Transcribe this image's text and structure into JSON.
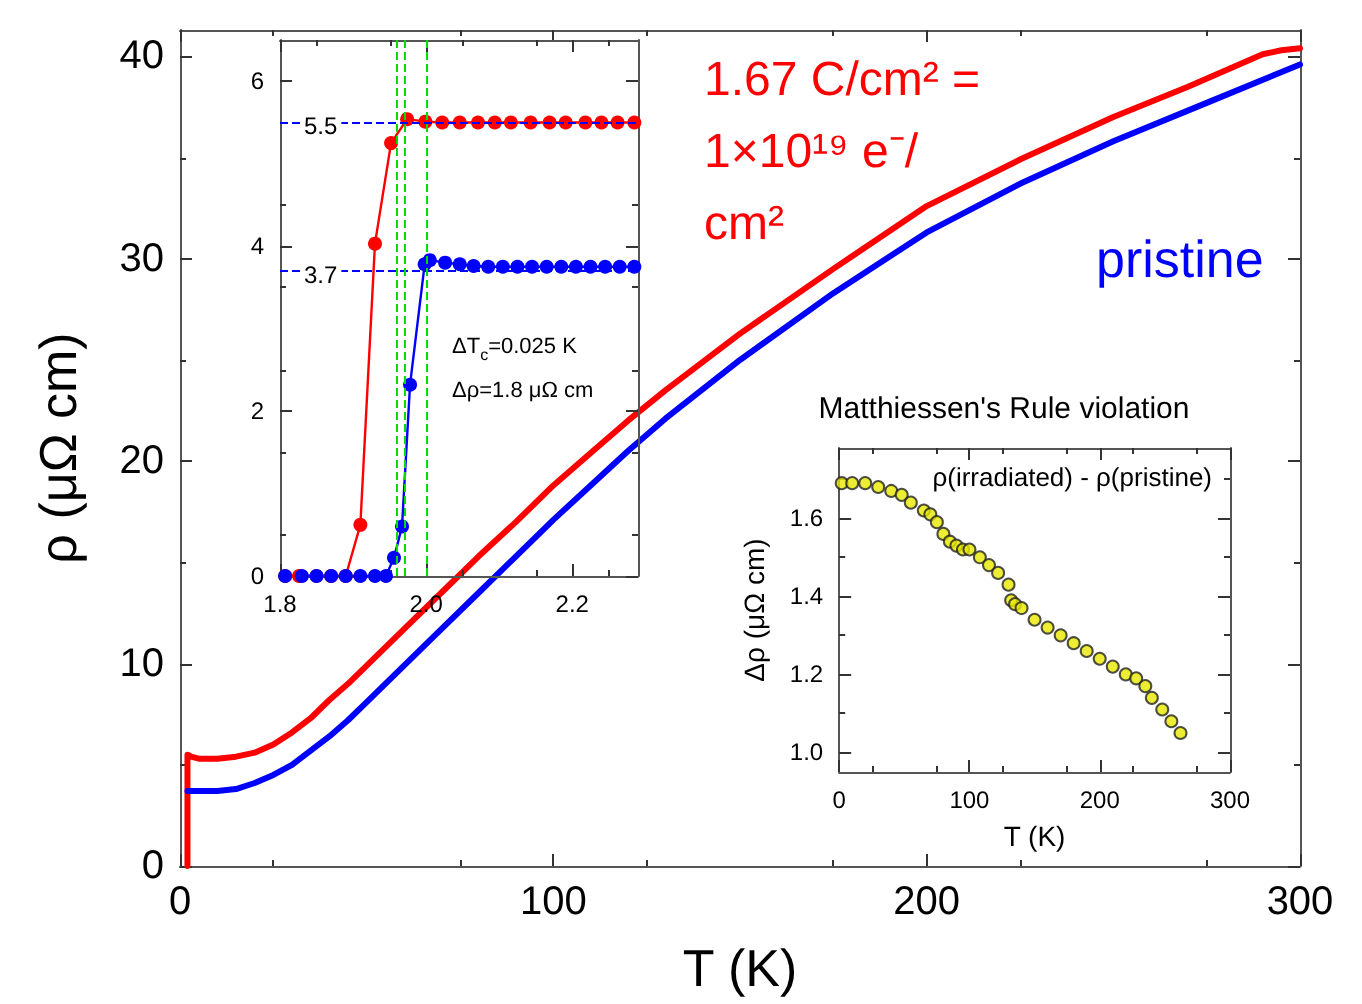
{
  "chart_data": [
    {
      "type": "line",
      "xlabel": "T (K)",
      "ylabel": "ρ (μΩ cm)",
      "xlim": [
        0,
        300
      ],
      "ylim": [
        0,
        41.3
      ],
      "xticks": [
        0,
        100,
        200,
        300
      ],
      "yticks": [
        0,
        10,
        20,
        30,
        40
      ],
      "grid": false,
      "legend": false,
      "marker": "none",
      "line_style": "solid",
      "series": [
        {
          "name": "1.67 C/cm² = 1×10¹⁹ e⁻/cm²",
          "color": "#ff0000",
          "x": [
            2,
            2,
            3,
            5,
            10,
            15,
            20,
            25,
            30,
            35,
            40,
            45,
            50,
            60,
            70,
            80,
            90,
            100,
            110,
            120,
            130,
            150,
            175,
            200,
            225,
            250,
            270,
            280,
            290,
            295,
            300
          ],
          "values": [
            0,
            5.5,
            5.4,
            5.3,
            5.3,
            5.4,
            5.6,
            6.0,
            6.6,
            7.3,
            8.2,
            9.0,
            9.9,
            11.7,
            13.5,
            15.3,
            17.0,
            18.8,
            20.4,
            22.0,
            23.5,
            26.3,
            29.5,
            32.6,
            34.9,
            37.0,
            38.5,
            39.3,
            40.1,
            40.3,
            40.4
          ]
        },
        {
          "name": "pristine",
          "color": "#0000ff",
          "x": [
            2,
            10,
            15,
            20,
            25,
            30,
            35,
            40,
            45,
            50,
            60,
            70,
            80,
            90,
            100,
            110,
            120,
            130,
            150,
            175,
            200,
            225,
            250,
            275,
            300
          ],
          "values": [
            3.7,
            3.7,
            3.8,
            4.1,
            4.5,
            5.0,
            5.7,
            6.4,
            7.2,
            8.1,
            9.9,
            11.7,
            13.5,
            15.3,
            17.1,
            18.8,
            20.5,
            22.1,
            25.0,
            28.3,
            31.3,
            33.7,
            35.8,
            37.7,
            39.6
          ]
        }
      ]
    },
    {
      "type": "line",
      "xlim": [
        1.8,
        2.29
      ],
      "ylim": [
        0,
        6.5
      ],
      "xticks": [
        1.8,
        {
          "value": 2,
          "label": "2.0"
        },
        2.2
      ],
      "yticks": [
        0,
        2,
        4,
        6
      ],
      "grid": false,
      "legend": false,
      "marker": "circle",
      "line_style": "solid",
      "annotations": [
        "ΔT$_{c}$=0.025 K",
        "Δρ=1.8 μΩ cm"
      ],
      "ref_lines": [
        {
          "axis": "y",
          "value": 5.5,
          "label": "5.5",
          "color": "#0000ff",
          "line_style": "dashed"
        },
        {
          "axis": "y",
          "value": 3.7,
          "label": "3.7",
          "color": "#0000ff",
          "line_style": "dashed"
        },
        {
          "axis": "x",
          "value": 1.958,
          "label": null,
          "color": "#00dd00",
          "line_style": "dashed"
        },
        {
          "axis": "x",
          "value": 1.973,
          "label": null,
          "color": "#00dd00",
          "line_style": "dashed"
        },
        {
          "axis": "x",
          "value": 1.998,
          "label": null,
          "color": "#00dd00",
          "line_style": "dashed"
        }
      ],
      "series": [
        {
          "color": "#ff0000",
          "x": [
            1.807,
            1.826,
            1.85,
            1.87,
            1.89,
            1.91,
            1.93,
            1.952,
            1.974,
            1.999,
            2.022,
            2.046,
            2.071,
            2.094,
            2.116,
            2.143,
            2.169,
            2.191,
            2.218,
            2.24,
            2.262,
            2.285
          ],
          "values": [
            0,
            0,
            0,
            0,
            0,
            0.62,
            4.03,
            5.25,
            5.54,
            5.51,
            5.5,
            5.5,
            5.5,
            5.5,
            5.5,
            5.5,
            5.5,
            5.5,
            5.5,
            5.5,
            5.5,
            5.5
          ]
        },
        {
          "color": "#0000ff",
          "x": [
            1.807,
            1.83,
            1.85,
            1.87,
            1.89,
            1.91,
            1.93,
            1.945,
            1.956,
            1.967,
            1.978,
            1.998,
            2.005,
            2.026,
            2.046,
            2.065,
            2.085,
            2.105,
            2.125,
            2.145,
            2.165,
            2.185,
            2.205,
            2.225,
            2.245,
            2.265,
            2.285
          ],
          "values": [
            0,
            0,
            0,
            0,
            0,
            0,
            0,
            0,
            0.22,
            0.6,
            2.32,
            3.78,
            3.83,
            3.8,
            3.78,
            3.76,
            3.75,
            3.75,
            3.75,
            3.75,
            3.75,
            3.75,
            3.75,
            3.75,
            3.75,
            3.75,
            3.75
          ]
        }
      ]
    },
    {
      "type": "scatter",
      "title": "Matthiessen's Rule violation",
      "subtitle": "ρ(irradiated) - ρ(pristine)",
      "xlabel": "T (K)",
      "ylabel": "Δρ (μΩ cm)",
      "xlim": [
        0,
        300
      ],
      "ylim": [
        0.95,
        1.78
      ],
      "xticks": [
        0,
        100,
        200,
        300
      ],
      "yticks": [
        {
          "value": 1,
          "label": "1.0"
        },
        1.2,
        1.4,
        1.6
      ],
      "grid": false,
      "legend": false,
      "marker": "circle",
      "series": [
        {
          "color": "#e8e800",
          "x": [
            2,
            10,
            20,
            30,
            40,
            48,
            55,
            65,
            70,
            75,
            80,
            85,
            90,
            95,
            100,
            108,
            115,
            122,
            130,
            132,
            135,
            140,
            150,
            160,
            170,
            180,
            190,
            200,
            210,
            220,
            228,
            235,
            240,
            248,
            255,
            262
          ],
          "values": [
            1.69,
            1.69,
            1.69,
            1.68,
            1.67,
            1.66,
            1.64,
            1.62,
            1.61,
            1.59,
            1.56,
            1.54,
            1.53,
            1.52,
            1.52,
            1.5,
            1.48,
            1.46,
            1.43,
            1.39,
            1.38,
            1.37,
            1.34,
            1.32,
            1.3,
            1.28,
            1.26,
            1.24,
            1.22,
            1.2,
            1.19,
            1.17,
            1.14,
            1.11,
            1.08,
            1.05
          ]
        }
      ]
    }
  ]
}
